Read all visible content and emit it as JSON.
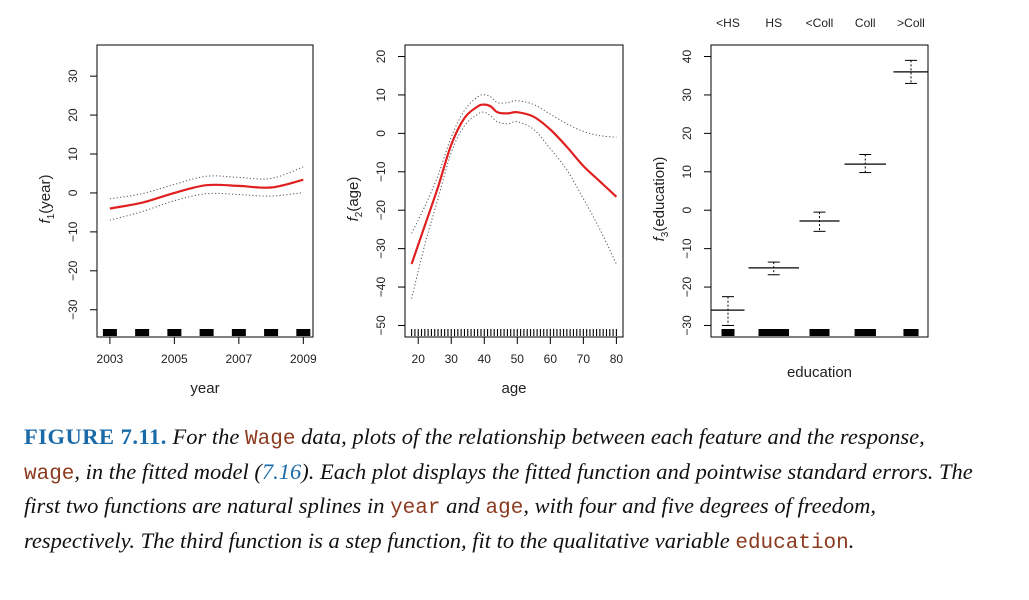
{
  "chart_data": [
    {
      "type": "line",
      "xlabel": "year",
      "ylabel_base": "f",
      "ylabel_sub": "1",
      "ylabel_arg": "(year)",
      "xlim": [
        2002.6,
        2009.3
      ],
      "ylim": [
        -37,
        38
      ],
      "xticks": [
        2003,
        2005,
        2007,
        2009
      ],
      "yticks": [
        -30,
        -20,
        -10,
        0,
        10,
        20,
        30
      ],
      "series": [
        {
          "role": "fit",
          "color": "#e02020",
          "x": [
            2003,
            2004,
            2005,
            2006,
            2007,
            2008,
            2009
          ],
          "y": [
            -4,
            -2.5,
            0,
            2,
            1.8,
            1.4,
            3.4
          ]
        },
        {
          "role": "upper",
          "color": "#555555",
          "x": [
            2003,
            2004,
            2005,
            2006,
            2007,
            2008,
            2009
          ],
          "y": [
            -1.5,
            -0.2,
            2.2,
            4.3,
            4,
            3.7,
            6.7
          ]
        },
        {
          "role": "lower",
          "color": "#555555",
          "x": [
            2003,
            2004,
            2005,
            2006,
            2007,
            2008,
            2009
          ],
          "y": [
            -7,
            -4.8,
            -2.0,
            -0.2,
            -0.4,
            -0.8,
            0.1
          ]
        }
      ],
      "rug": [
        2003,
        2004,
        2005,
        2006,
        2007,
        2008,
        2009
      ]
    },
    {
      "type": "line",
      "xlabel": "age",
      "ylabel_base": "f",
      "ylabel_sub": "2",
      "ylabel_arg": "(age)",
      "xlim": [
        16,
        82
      ],
      "ylim": [
        -53,
        23
      ],
      "xticks": [
        20,
        30,
        40,
        50,
        60,
        70,
        80
      ],
      "yticks": [
        -50,
        -40,
        -30,
        -20,
        -10,
        0,
        10,
        20
      ],
      "series": [
        {
          "role": "fit",
          "color": "#e02020",
          "x": [
            18,
            22,
            26,
            30,
            34,
            38,
            40,
            42,
            44,
            47,
            50,
            55,
            60,
            65,
            70,
            75,
            80
          ],
          "y": [
            -34,
            -24,
            -14,
            -3,
            4,
            7,
            7.5,
            7,
            5.5,
            5.2,
            5.5,
            4.3,
            1,
            -3.5,
            -8.5,
            -12.5,
            -16.5
          ]
        },
        {
          "role": "upper",
          "color": "#555555",
          "x": [
            18,
            22,
            26,
            30,
            34,
            38,
            40,
            42,
            44,
            47,
            50,
            55,
            60,
            65,
            70,
            75,
            80
          ],
          "y": [
            -26,
            -19,
            -11,
            -1,
            6,
            9.5,
            10,
            9.5,
            8,
            8,
            8.5,
            7.5,
            5,
            2.5,
            0.5,
            -0.6,
            -1
          ]
        },
        {
          "role": "lower",
          "color": "#555555",
          "x": [
            18,
            22,
            26,
            30,
            34,
            38,
            40,
            42,
            44,
            47,
            50,
            55,
            60,
            65,
            70,
            75,
            80
          ],
          "y": [
            -43,
            -29,
            -17,
            -5,
            2,
            5,
            5.5,
            4.5,
            3,
            2.5,
            3,
            1,
            -4,
            -9.5,
            -17,
            -25,
            -34
          ]
        }
      ],
      "rug_range": [
        18,
        80
      ]
    },
    {
      "type": "step",
      "xlabel": "education",
      "ylabel_base": "f",
      "ylabel_sub": "3",
      "ylabel_arg": "(education)",
      "categories": [
        "<HS",
        "HS",
        "<Coll",
        "Coll",
        ">Coll"
      ],
      "ylim": [
        -33,
        43
      ],
      "yticks": [
        -30,
        -20,
        -10,
        0,
        10,
        20,
        30,
        40
      ],
      "values": [
        -26,
        -15,
        -2.8,
        12,
        36
      ],
      "upper": [
        -22.5,
        -13.5,
        -0.5,
        14.5,
        39
      ],
      "lower": [
        -30,
        -16.8,
        -5.5,
        9.8,
        33
      ],
      "rug_widths": [
        1,
        3.5,
        2,
        2.2,
        1.3
      ]
    }
  ],
  "caption": {
    "label": "FIGURE 7.11.",
    "p1": " For the ",
    "c1": "Wage",
    "p2": " data, plots of the relationship between each feature and the response, ",
    "c2": "wage",
    "p3": ", in the fitted model (",
    "ref": "7.16",
    "p4": "). Each plot displays the fitted function and pointwise standard errors. The first two functions are natural splines in ",
    "c3": "year",
    "p5": " and ",
    "c4": "age",
    "p6": ", with four and five degrees of freedom, respectively. The third function is a step function, fit to the qualitative variable ",
    "c5": "education",
    "p7": "."
  }
}
